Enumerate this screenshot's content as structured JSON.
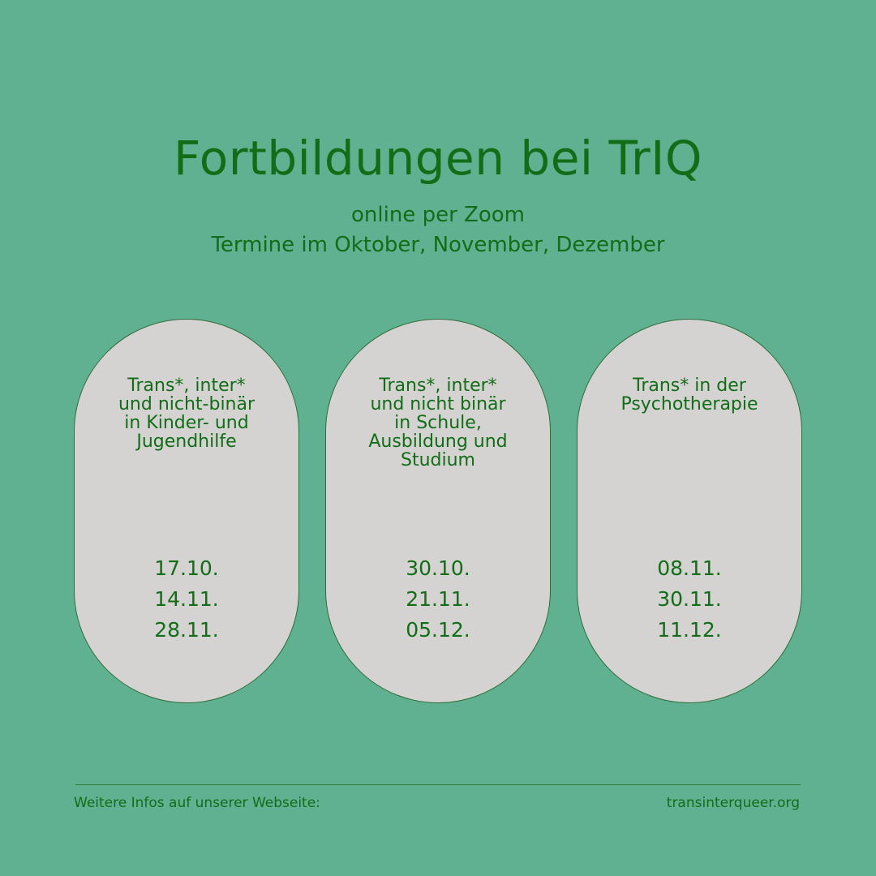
{
  "header": {
    "title": "Fortbildungen bei TrIQ",
    "subtitle_line1": "online per Zoom",
    "subtitle_line2": "Termine im Oktober, November, Dezember"
  },
  "courses": [
    {
      "title": "Trans*, inter*\nund nicht-binär\nin Kinder- und\nJugendhilfe",
      "dates": [
        "17.10.",
        "14.11.",
        "28.11."
      ]
    },
    {
      "title": "Trans*, inter*\nund nicht binär\nin Schule,\nAusbildung und\nStudium",
      "dates": [
        "30.10.",
        "21.11.",
        "05.12."
      ]
    },
    {
      "title": "Trans* in der\nPsychotherapie",
      "dates": [
        "08.11.",
        "30.11.",
        "11.12."
      ]
    }
  ],
  "footer": {
    "info_label": "Weitere Infos auf unserer Webseite:",
    "website": "transinterqueer.org"
  },
  "colors": {
    "background": "#5fb191",
    "text": "#116d16",
    "pill": "#d4d3d2"
  }
}
